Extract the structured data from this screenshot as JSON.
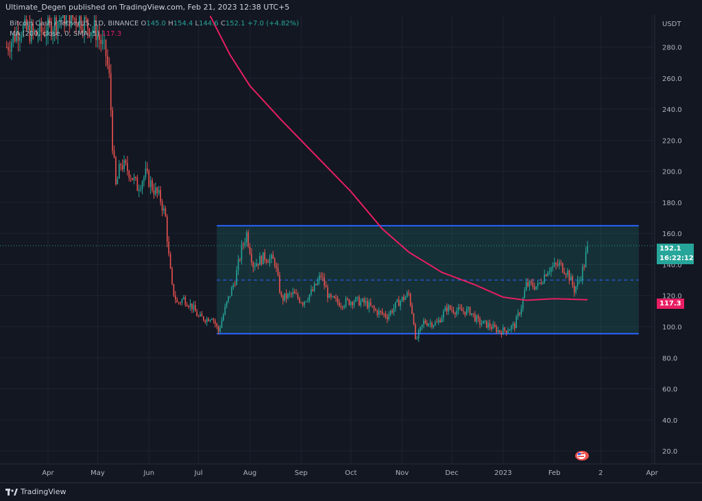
{
  "header": {
    "publisher": "Ultimate_Degen",
    "published_on": "published on TradingView.com, Feb 21, 2023 12:38 UTC+5"
  },
  "legend": {
    "symbol": "Bitcoin Cash / TetherUS, 1D, BINANCE",
    "ohlc": {
      "O": "145.0",
      "H": "154.4",
      "L": "144.6",
      "C": "152.1",
      "change": "+7.0 (+4.82%)"
    },
    "ma": "MA (200, close, 0, SMA, 5)",
    "ma_value": "117.3"
  },
  "axis": {
    "currency": "USDT",
    "current_price": "152.1",
    "countdown": "16:22:12",
    "ma_price": "117.3"
  },
  "footer": {
    "brand": "TradingView"
  },
  "colors": {
    "background": "#131722",
    "up": "#26a69a",
    "down": "#ef5350",
    "ma": "#e91e63",
    "channel": "#2962ff",
    "channel_fill": "rgba(38,166,154,0.18)"
  },
  "chart_data": {
    "type": "candlestick",
    "title": "Bitcoin Cash / TetherUS, 1D, BINANCE",
    "ylabel": "USDT",
    "ylim": [
      15,
      295
    ],
    "y_ticks": [
      20,
      40,
      60,
      80,
      100,
      120,
      140,
      160,
      180,
      200,
      220,
      240,
      260,
      280
    ],
    "x_ticks": [
      {
        "label": "Apr",
        "date": "2022-04-01"
      },
      {
        "label": "May",
        "date": "2022-05-01"
      },
      {
        "label": "Jun",
        "date": "2022-06-01"
      },
      {
        "label": "Jul",
        "date": "2022-07-01"
      },
      {
        "label": "Aug",
        "date": "2022-08-01"
      },
      {
        "label": "Sep",
        "date": "2022-09-01"
      },
      {
        "label": "Oct",
        "date": "2022-10-01"
      },
      {
        "label": "Nov",
        "date": "2022-11-01"
      },
      {
        "label": "Dec",
        "date": "2022-12-01"
      },
      {
        "label": "2023",
        "date": "2023-01-01"
      },
      {
        "label": "Feb",
        "date": "2023-02-01"
      },
      {
        "label": "2",
        "date": "2023-03-01"
      },
      {
        "label": "Apr",
        "date": "2023-04-01"
      }
    ],
    "close_series": [
      [
        "2022-03-07",
        280
      ],
      [
        "2022-03-15",
        292
      ],
      [
        "2022-03-25",
        288
      ],
      [
        "2022-04-01",
        292
      ],
      [
        "2022-04-10",
        300
      ],
      [
        "2022-04-20",
        298
      ],
      [
        "2022-04-30",
        290
      ],
      [
        "2022-05-03",
        283
      ],
      [
        "2022-05-06",
        275
      ],
      [
        "2022-05-08",
        260
      ],
      [
        "2022-05-09",
        240
      ],
      [
        "2022-05-10",
        218
      ],
      [
        "2022-05-12",
        190
      ],
      [
        "2022-05-15",
        205
      ],
      [
        "2022-05-20",
        200
      ],
      [
        "2022-05-25",
        190
      ],
      [
        "2022-05-30",
        198
      ],
      [
        "2022-06-03",
        190
      ],
      [
        "2022-06-08",
        182
      ],
      [
        "2022-06-11",
        170
      ],
      [
        "2022-06-13",
        145
      ],
      [
        "2022-06-15",
        125
      ],
      [
        "2022-06-18",
        115
      ],
      [
        "2022-06-22",
        118
      ],
      [
        "2022-06-27",
        113
      ],
      [
        "2022-07-01",
        106
      ],
      [
        "2022-07-06",
        105
      ],
      [
        "2022-07-09",
        107
      ],
      [
        "2022-07-13",
        97
      ],
      [
        "2022-07-18",
        115
      ],
      [
        "2022-07-23",
        130
      ],
      [
        "2022-07-27",
        150
      ],
      [
        "2022-07-30",
        160
      ],
      [
        "2022-08-03",
        140
      ],
      [
        "2022-08-10",
        145
      ],
      [
        "2022-08-16",
        142
      ],
      [
        "2022-08-20",
        118
      ],
      [
        "2022-08-27",
        121
      ],
      [
        "2022-09-02",
        116
      ],
      [
        "2022-09-08",
        123
      ],
      [
        "2022-09-13",
        133
      ],
      [
        "2022-09-18",
        118
      ],
      [
        "2022-09-25",
        115
      ],
      [
        "2022-10-03",
        117
      ],
      [
        "2022-10-10",
        115
      ],
      [
        "2022-10-16",
        110
      ],
      [
        "2022-10-23",
        107
      ],
      [
        "2022-10-30",
        116
      ],
      [
        "2022-11-05",
        121
      ],
      [
        "2022-11-08",
        104
      ],
      [
        "2022-11-09",
        90
      ],
      [
        "2022-11-14",
        103
      ],
      [
        "2022-11-22",
        102
      ],
      [
        "2022-11-28",
        112
      ],
      [
        "2022-12-05",
        110
      ],
      [
        "2022-12-12",
        110
      ],
      [
        "2022-12-17",
        103
      ],
      [
        "2022-12-23",
        101
      ],
      [
        "2022-12-30",
        97
      ],
      [
        "2023-01-03",
        98
      ],
      [
        "2023-01-08",
        101
      ],
      [
        "2023-01-12",
        113
      ],
      [
        "2023-01-15",
        127
      ],
      [
        "2023-01-22",
        126
      ],
      [
        "2023-01-28",
        137
      ],
      [
        "2023-02-04",
        140
      ],
      [
        "2023-02-09",
        135
      ],
      [
        "2023-02-13",
        124
      ],
      [
        "2023-02-16",
        130
      ],
      [
        "2023-02-19",
        140
      ],
      [
        "2023-02-21",
        152.1
      ]
    ],
    "ma_series": [
      [
        "2022-07-08",
        300
      ],
      [
        "2022-07-20",
        275
      ],
      [
        "2022-08-01",
        255
      ],
      [
        "2022-08-20",
        233
      ],
      [
        "2022-09-10",
        210
      ],
      [
        "2022-10-01",
        187
      ],
      [
        "2022-10-20",
        163
      ],
      [
        "2022-11-05",
        148
      ],
      [
        "2022-11-25",
        135
      ],
      [
        "2022-12-15",
        127
      ],
      [
        "2023-01-01",
        119
      ],
      [
        "2023-01-15",
        117
      ],
      [
        "2023-02-01",
        118
      ],
      [
        "2023-02-21",
        117.3
      ]
    ],
    "channel": {
      "upper": 165,
      "lower": 95.5,
      "mid": 130,
      "start": "2022-07-12",
      "end": "2023-03-24"
    },
    "last_price_line": 152.1
  }
}
